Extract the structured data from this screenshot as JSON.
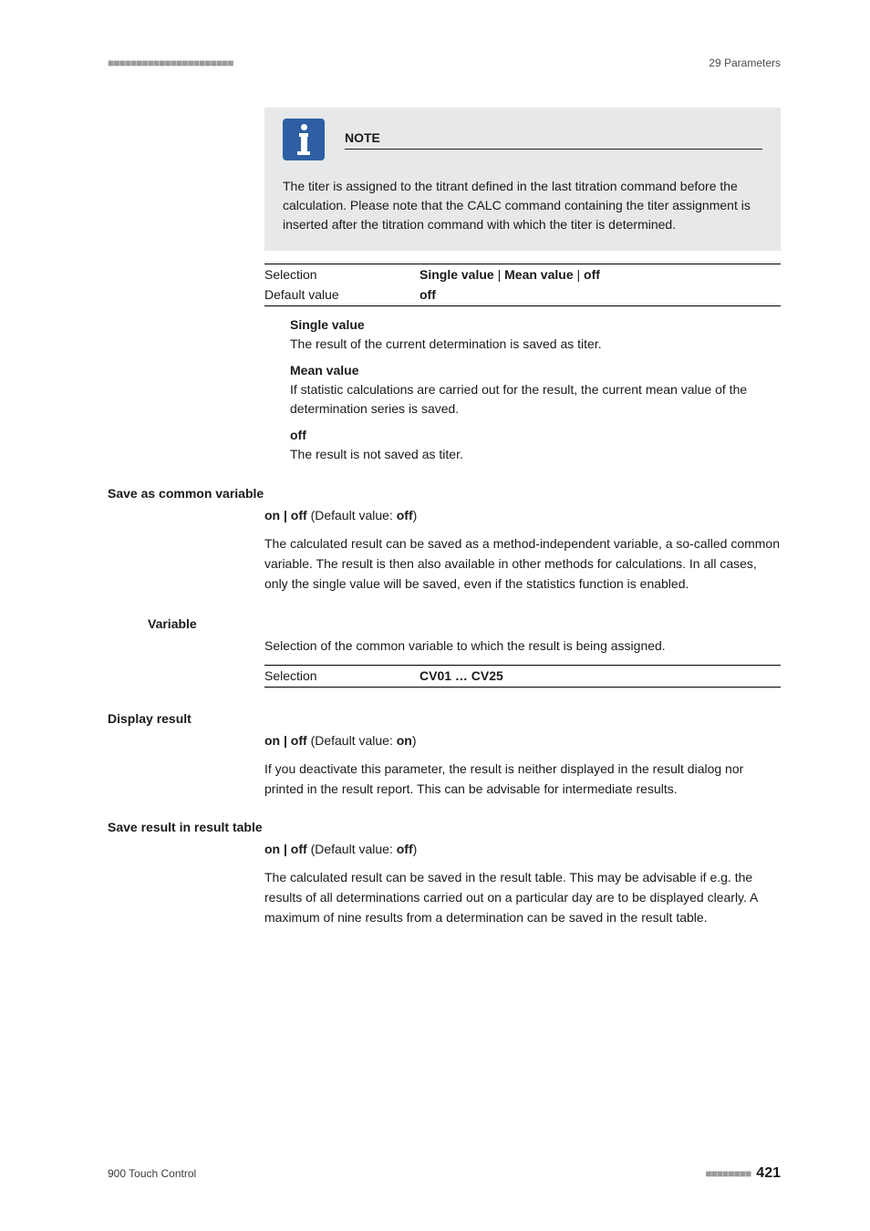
{
  "header": {
    "marks_left": "■■■■■■■■■■■■■■■■■■■■■■",
    "chapter": "29 Parameters"
  },
  "note": {
    "title": "NOTE",
    "body": "The titer is assigned to the titrant defined in the last titration command before the calculation. Please note that the CALC command containing the titer assignment is inserted after the titration command with which the titer is determined."
  },
  "titer_selection": {
    "selection_label": "Selection",
    "selection_html": "<b>Single value</b> | <b>Mean value</b> | <b>off</b>",
    "default_label": "Default value",
    "default_html": "<b>off</b>",
    "options": [
      {
        "name": "Single value",
        "desc": "The result of the current determination is saved as titer."
      },
      {
        "name": "Mean value",
        "desc": "If statistic calculations are carried out for the result, the current mean value of the determination series is saved."
      },
      {
        "name": "off",
        "desc": "The result is not saved as titer."
      }
    ]
  },
  "save_common": {
    "title": "Save as common variable",
    "toggle_html": "<b>on | off</b> (Default value: <b>off</b>)",
    "body": "The calculated result can be saved as a method-independent variable, a so-called common variable. The result is then also available in other methods for calculations. In all cases, only the single value will be saved, even if the statistics function is enabled."
  },
  "variable": {
    "title": "Variable",
    "body": "Selection of the common variable to which the result is being assigned.",
    "selection_label": "Selection",
    "selection_html": "<b>CV01 … CV25</b>"
  },
  "display_result": {
    "title": "Display result",
    "toggle_html": "<b>on | off</b> (Default value: <b>on</b>)",
    "body": "If you deactivate this parameter, the result is neither displayed in the result dialog nor printed in the result report. This can be advisable for intermediate results."
  },
  "save_table": {
    "title": "Save result in result table",
    "toggle_html": "<b>on | off</b> (Default value: <b>off</b>)",
    "body": "The calculated result can be saved in the result table. This may be advisable if e.g. the results of all determinations carried out on a particular day are to be displayed clearly. A maximum of nine results from a determination can be saved in the result table."
  },
  "footer": {
    "product": "900 Touch Control",
    "marks_right": "■■■■■■■■",
    "page": "421"
  }
}
